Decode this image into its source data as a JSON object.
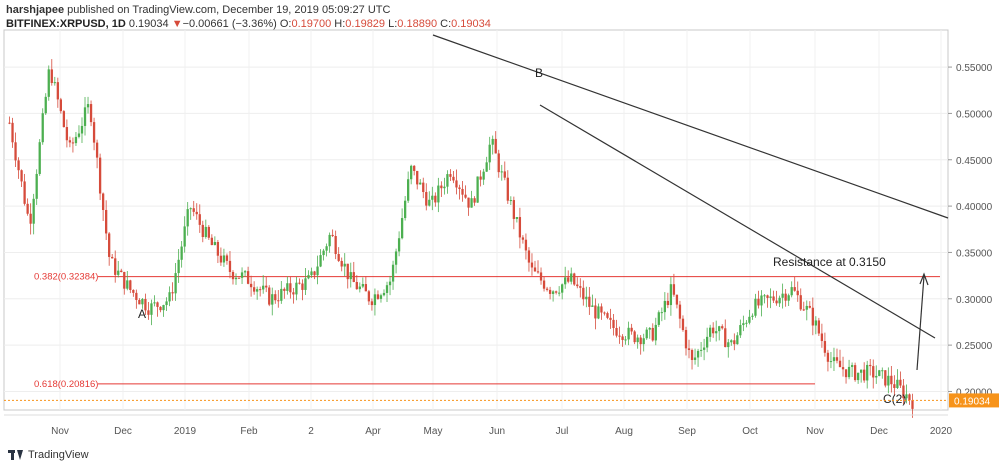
{
  "header": {
    "author": "harshjapee",
    "published_text": "published on TradingView.com, December 19, 2019 05:09:27 UTC",
    "symbol": "BITFINEX:XRPUSD, 1D",
    "last": "0.19034",
    "change_arrow": "▼",
    "change": "−0.00661 (−3.36%)",
    "o_label": "O:",
    "o": "0.19700",
    "h_label": "H:",
    "h": "0.19829",
    "l_label": "L:",
    "l": "0.18890",
    "c_label": "C:",
    "c": "0.19034"
  },
  "footer": {
    "brand": "TradingView"
  },
  "colors": {
    "up": "#4caf50",
    "down": "#d64b3b",
    "fib": "#e53935",
    "price_tag": "#f7931a",
    "trend": "#333333"
  },
  "chart_data": {
    "type": "candlestick",
    "title": "",
    "xlabel": "",
    "ylabel": "",
    "ylim": [
      0.18,
      0.59
    ],
    "y_ticks": [
      "0.55000",
      "0.50000",
      "0.45000",
      "0.40000",
      "0.35000",
      "0.30000",
      "0.25000",
      "0.20000"
    ],
    "x_ticks": [
      "Nov",
      "Dec",
      "2019",
      "Feb",
      "2",
      "Apr",
      "May",
      "Jun",
      "Jul",
      "Aug",
      "Sep",
      "Oct",
      "Nov",
      "Dec",
      "2020"
    ],
    "grid": true,
    "last_price_tag": "0.19034",
    "levels": [
      {
        "label": "0.382(0.32384)",
        "value": 0.32384
      },
      {
        "label": "0.618(0.20816)",
        "value": 0.20816
      }
    ],
    "annotations": [
      {
        "text": "A",
        "at": "Dec"
      },
      {
        "text": "B",
        "at": "Jun"
      },
      {
        "text": "C(2)",
        "at": "Dec"
      },
      {
        "text": "Resistance at 0.3150",
        "at": "Oct"
      }
    ],
    "trendlines": [
      {
        "from": [
          "May",
          0.59
        ],
        "to": [
          "2020",
          0.38
        ]
      },
      {
        "from": [
          "Jun",
          0.51
        ],
        "to": [
          "2020",
          0.24
        ]
      }
    ],
    "ohlc_path": [
      [
        "Oct",
        0.49
      ],
      [
        "Oct",
        0.38
      ],
      [
        "Nov",
        0.55
      ],
      [
        "Nov",
        0.46
      ],
      [
        "Nov",
        0.51
      ],
      [
        "Dec",
        0.34
      ],
      [
        "Dec",
        0.31
      ],
      [
        "Dec",
        0.29
      ],
      [
        "Dec",
        0.3
      ],
      [
        "2019",
        0.4
      ],
      [
        "2019",
        0.36
      ],
      [
        "2019",
        0.33
      ],
      [
        "Feb",
        0.32
      ],
      [
        "Feb",
        0.3
      ],
      [
        "2",
        0.31
      ],
      [
        "2",
        0.32
      ],
      [
        "Apr",
        0.37
      ],
      [
        "Apr",
        0.32
      ],
      [
        "May",
        0.3
      ],
      [
        "May",
        0.32
      ],
      [
        "May",
        0.44
      ],
      [
        "May",
        0.4
      ],
      [
        "Jun",
        0.44
      ],
      [
        "Jun",
        0.4
      ],
      [
        "Jun",
        0.47
      ],
      [
        "Jul",
        0.4
      ],
      [
        "Jul",
        0.33
      ],
      [
        "Jul",
        0.31
      ],
      [
        "Jul",
        0.32
      ],
      [
        "Aug",
        0.29
      ],
      [
        "Aug",
        0.27
      ],
      [
        "Aug",
        0.26
      ],
      [
        "Sep",
        0.26
      ],
      [
        "Sep",
        0.31
      ],
      [
        "Sep",
        0.23
      ],
      [
        "Sep",
        0.27
      ],
      [
        "Oct",
        0.25
      ],
      [
        "Oct",
        0.29
      ],
      [
        "Oct",
        0.3
      ],
      [
        "Nov",
        0.31
      ],
      [
        "Nov",
        0.28
      ],
      [
        "Nov",
        0.23
      ],
      [
        "Dec",
        0.22
      ],
      [
        "Dec",
        0.22
      ],
      [
        "Dec",
        0.21
      ],
      [
        "Dec",
        0.19
      ]
    ]
  }
}
